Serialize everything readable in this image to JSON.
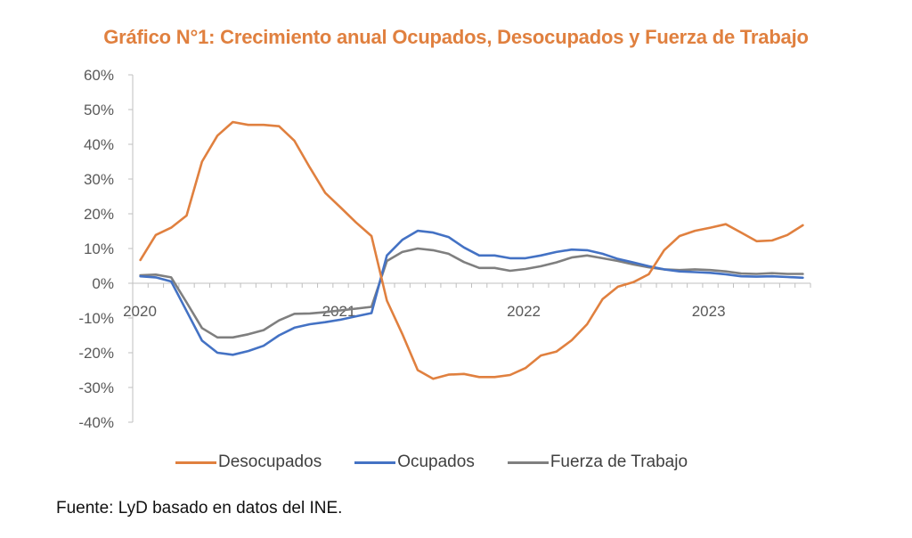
{
  "chart_data": {
    "type": "line",
    "title": "Gráfico N°1: Crecimiento anual Ocupados, Desocupados y Fuerza de Trabajo",
    "xlabel": "",
    "ylabel": "",
    "ylim": [
      -40,
      60
    ],
    "yticks": [
      "60%",
      "50%",
      "40%",
      "30%",
      "20%",
      "10%",
      "0%",
      "-10%",
      "-20%",
      "-30%",
      "-40%"
    ],
    "ytick_values": [
      60,
      50,
      40,
      30,
      20,
      10,
      0,
      -10,
      -20,
      -30,
      -40
    ],
    "x_period": "monthly, Jan 2020 - Aug 2023",
    "x_year_labels": [
      {
        "label": "2020",
        "index": 0
      },
      {
        "label": "2021",
        "index": 12
      },
      {
        "label": "2022",
        "index": 24
      },
      {
        "label": "2023",
        "index": 36
      }
    ],
    "grid": false,
    "legend_position": "bottom",
    "series": [
      {
        "name": "Desocupados",
        "color": "#E0803F",
        "values": [
          6.7,
          13.9,
          16.0,
          19.5,
          35.0,
          42.5,
          46.4,
          45.6,
          45.6,
          45.2,
          41.0,
          33.3,
          26.0,
          21.8,
          17.5,
          13.6,
          -5.0,
          -14.6,
          -25.0,
          -27.5,
          -26.3,
          -26.1,
          -27.0,
          -27.0,
          -26.4,
          -24.4,
          -20.8,
          -19.7,
          -16.4,
          -11.8,
          -4.6,
          -1.0,
          0.3,
          2.6,
          9.5,
          13.6,
          15.1,
          16.0,
          17.0,
          14.6,
          12.1,
          12.3,
          13.9,
          16.7
        ]
      },
      {
        "name": "Ocupados",
        "color": "#4472C4",
        "values": [
          2.0,
          1.7,
          0.5,
          -8.0,
          -16.5,
          -20.0,
          -20.6,
          -19.5,
          -18.0,
          -15.0,
          -12.8,
          -11.8,
          -11.2,
          -10.5,
          -9.5,
          -8.6,
          8.0,
          12.5,
          15.1,
          14.6,
          13.3,
          10.3,
          8.0,
          8.0,
          7.2,
          7.2,
          8.0,
          9.0,
          9.7,
          9.5,
          8.5,
          7.0,
          6.0,
          4.9,
          4.0,
          3.4,
          3.2,
          3.0,
          2.6,
          2.0,
          1.9,
          2.0,
          1.8,
          1.6
        ]
      },
      {
        "name": "Fuerza de Trabajo",
        "color": "#7F7F7F",
        "values": [
          2.3,
          2.5,
          1.7,
          -5.5,
          -12.9,
          -15.6,
          -15.6,
          -14.7,
          -13.5,
          -10.7,
          -8.8,
          -8.7,
          -8.3,
          -7.8,
          -7.3,
          -6.8,
          6.4,
          9.0,
          10.0,
          9.5,
          8.5,
          6.1,
          4.4,
          4.4,
          3.6,
          4.1,
          4.9,
          6.0,
          7.4,
          8.0,
          7.2,
          6.4,
          5.4,
          4.6,
          4.0,
          3.8,
          4.0,
          3.8,
          3.4,
          2.8,
          2.7,
          2.9,
          2.7,
          2.7
        ]
      }
    ]
  },
  "source_note": "Fuente: LyD basado en datos del INE."
}
